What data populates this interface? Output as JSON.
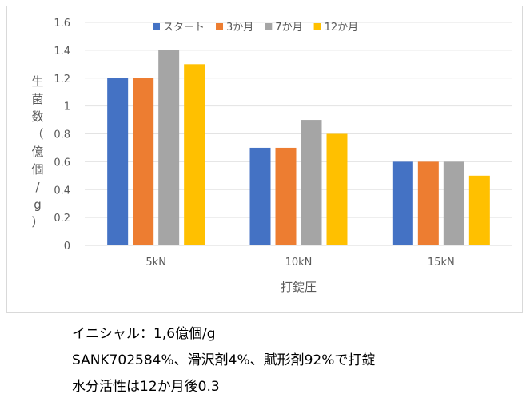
{
  "chart_data": {
    "type": "bar",
    "categories": [
      "5kN",
      "10kN",
      "15kN"
    ],
    "series": [
      {
        "name": "スタート",
        "values": [
          1.2,
          0.7,
          0.6
        ],
        "color": "#4472c4"
      },
      {
        "name": "3か月",
        "values": [
          1.2,
          0.7,
          0.6
        ],
        "color": "#ed7d31"
      },
      {
        "name": "7か月",
        "values": [
          1.4,
          0.9,
          0.6
        ],
        "color": "#a5a5a5"
      },
      {
        "name": "12か月",
        "values": [
          1.3,
          0.8,
          0.5
        ],
        "color": "#ffc000"
      }
    ],
    "xlabel": "打錠圧",
    "ylabel": "生菌数（億個/g）",
    "ylim": [
      0,
      1.6
    ],
    "yticks": [
      "0",
      "0.2",
      "0.4",
      "0.6",
      "0.8",
      "1",
      "1.2",
      "1.4",
      "1.6"
    ],
    "grid": true,
    "legend_position": "top"
  },
  "notes": [
    "イニシャル：1,6億個/g",
    "SANK702584%、滑沢剤4%、賦形剤92%で打錠",
    "水分活性は12か月後0.3"
  ]
}
